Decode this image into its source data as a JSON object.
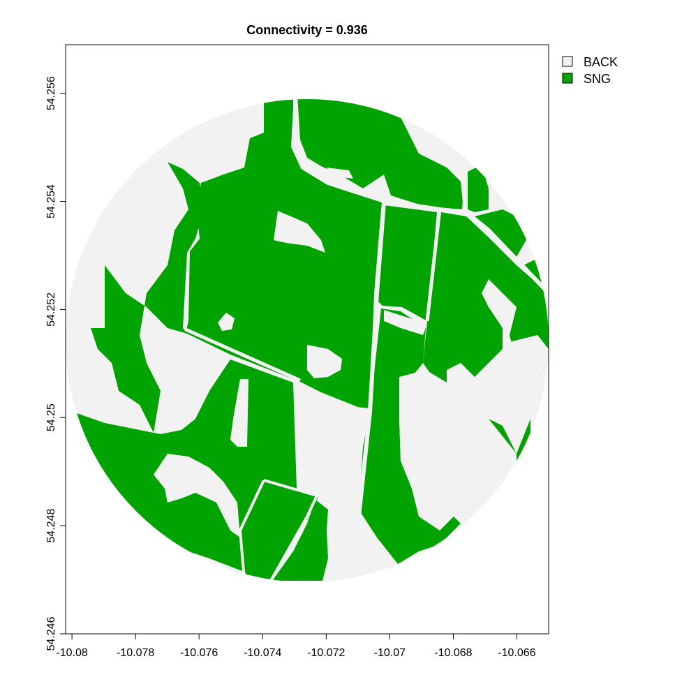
{
  "chart_data": {
    "type": "heatmap",
    "title": "Connectivity = 0.936",
    "xlabel": "",
    "ylabel": "",
    "xlim": [
      -10.0802,
      -10.065
    ],
    "ylim": [
      54.246,
      54.2569
    ],
    "x_ticks": [
      -10.08,
      -10.078,
      -10.076,
      -10.074,
      -10.072,
      -10.07,
      -10.068,
      -10.066
    ],
    "y_ticks": [
      54.246,
      54.248,
      54.25,
      54.252,
      54.254,
      54.256
    ],
    "x_tick_labels": [
      "-10.08",
      "-10.078",
      "-10.076",
      "-10.074",
      "-10.072",
      "-10.07",
      "-10.068",
      "-10.066"
    ],
    "y_tick_labels": [
      "54.246",
      "54.248",
      "54.25",
      "54.252",
      "54.254",
      "54.256"
    ],
    "legend": {
      "placement": "top-right-outside",
      "entries": [
        {
          "label": "BACK",
          "color": "#f2f2f2"
        },
        {
          "label": "SNG",
          "color": "#00a300"
        }
      ]
    },
    "colors": {
      "background_class": "#f2f2f2",
      "sng_class": "#00a300"
    },
    "grid": false
  }
}
